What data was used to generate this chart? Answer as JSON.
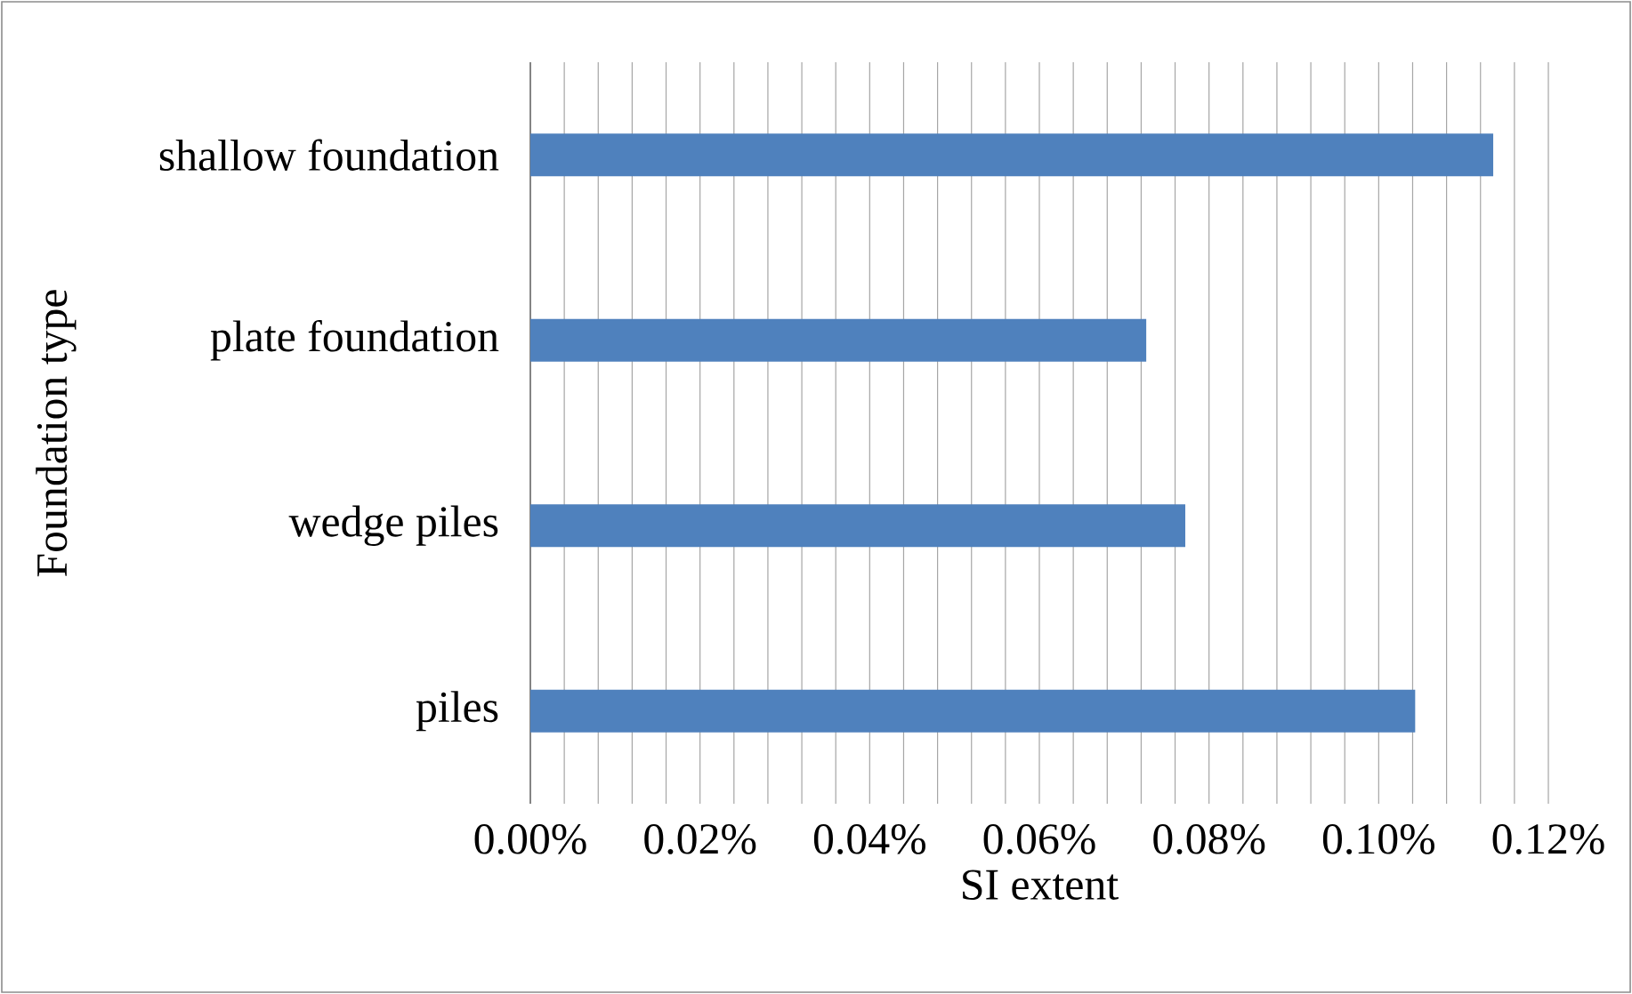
{
  "chart_data": {
    "type": "bar",
    "orientation": "horizontal",
    "xlabel": "SI extent",
    "ylabel": "Foundation type",
    "categories": [
      "shallow foundation",
      "plate foundation",
      "wedge piles",
      "piles"
    ],
    "values": [
      0.1135,
      0.0726,
      0.0772,
      0.1043
    ],
    "color": "#4f81bd",
    "xlim": [
      0,
      0.12
    ],
    "xticks": [
      {
        "value": 0,
        "label": "0.00%"
      },
      {
        "value": 0.004,
        "label": null
      },
      {
        "value": 0.008,
        "label": null
      },
      {
        "value": 0.012,
        "label": null
      },
      {
        "value": 0.016,
        "label": null
      },
      {
        "value": 0.02,
        "label": "0.02%"
      },
      {
        "value": 0.024,
        "label": null
      },
      {
        "value": 0.028,
        "label": null
      },
      {
        "value": 0.032,
        "label": null
      },
      {
        "value": 0.036,
        "label": null
      },
      {
        "value": 0.04,
        "label": "0.04%"
      },
      {
        "value": 0.044,
        "label": null
      },
      {
        "value": 0.048,
        "label": null
      },
      {
        "value": 0.052,
        "label": null
      },
      {
        "value": 0.056,
        "label": null
      },
      {
        "value": 0.06,
        "label": "0.06%"
      },
      {
        "value": 0.064,
        "label": null
      },
      {
        "value": 0.068,
        "label": null
      },
      {
        "value": 0.072,
        "label": null
      },
      {
        "value": 0.076,
        "label": null
      },
      {
        "value": 0.08,
        "label": "0.08%"
      },
      {
        "value": 0.084,
        "label": null
      },
      {
        "value": 0.088,
        "label": null
      },
      {
        "value": 0.092,
        "label": null
      },
      {
        "value": 0.096,
        "label": null
      },
      {
        "value": 0.1,
        "label": "0.10%"
      },
      {
        "value": 0.104,
        "label": null
      },
      {
        "value": 0.108,
        "label": null
      },
      {
        "value": 0.112,
        "label": null
      },
      {
        "value": 0.116,
        "label": null
      },
      {
        "value": 0.12,
        "label": "0.12%"
      }
    ],
    "grid": "x"
  }
}
